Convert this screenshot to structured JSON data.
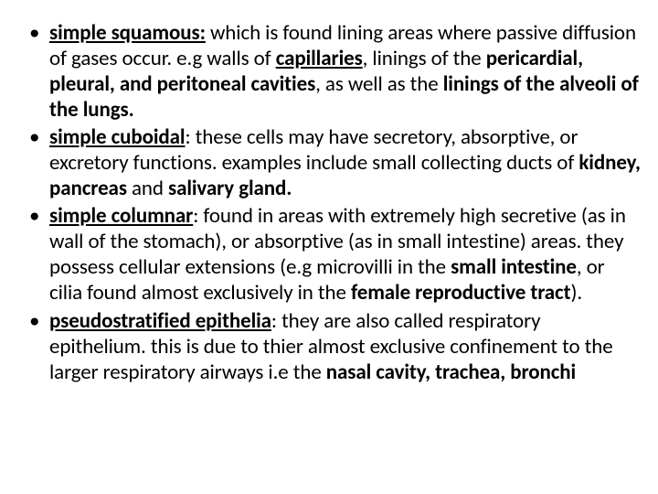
{
  "slide": {
    "background_color": "#ffffff",
    "text_color": "#000000",
    "font_family": "Calibri, Arial, sans-serif",
    "base_fontsize": 23,
    "line_height": 1.22,
    "bullets": [
      {
        "runs": [
          {
            "text": "simple squamous:",
            "bold": true,
            "underline": true
          },
          {
            "text": " which is found lining areas where passive diffusion of gases occur. e.g walls of "
          },
          {
            "text": "capillaries",
            "bold": true,
            "underline": true
          },
          {
            "text": ", linings of the "
          },
          {
            "text": "pericardial, pleural, and peritoneal cavities",
            "bold": true
          },
          {
            "text": ", as well as the "
          },
          {
            "text": "linings of the alveoli of the lungs.",
            "bold": true
          }
        ]
      },
      {
        "runs": [
          {
            "text": "simple cuboidal",
            "bold": true,
            "underline": true
          },
          {
            "text": ": these cells may have secretory, absorptive, or excretory functions. examples include small collecting ducts of "
          },
          {
            "text": "kidney, pancreas ",
            "bold": true
          },
          {
            "text": "and "
          },
          {
            "text": "salivary gland.",
            "bold": true
          }
        ]
      },
      {
        "runs": [
          {
            "text": "simple columnar",
            "bold": true,
            "underline": true
          },
          {
            "text": ": found in areas with extremely high secretive (as in wall of the stomach), or absorptive (as in small intestine) areas. they possess cellular extensions (e.g microvilli in the "
          },
          {
            "text": "small intestine",
            "bold": true
          },
          {
            "text": ", or cilia found almost exclusively in the "
          },
          {
            "text": "female reproductive tract",
            "bold": true
          },
          {
            "text": ")."
          }
        ]
      },
      {
        "runs": [
          {
            "text": "pseudostratified epithelia",
            "bold": true,
            "underline": true
          },
          {
            "text": ": they are also called respiratory epithelium. this is due to thier almost exclusive confinement to the larger respiratory airways i.e the "
          },
          {
            "text": "nasal cavity, trachea, bronchi",
            "bold": true
          }
        ]
      }
    ]
  }
}
